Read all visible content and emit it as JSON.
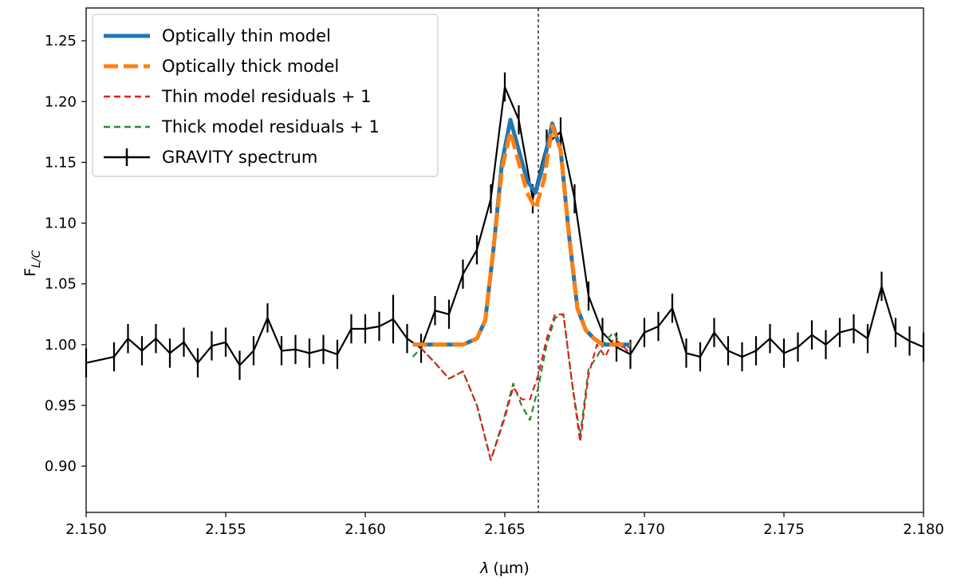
{
  "chart_data": {
    "type": "line",
    "xlabel_var": "λ",
    "xlabel_unit": "(μm)",
    "ylabel_main": "F",
    "ylabel_sub": "L/C",
    "xlim": [
      2.15,
      2.18
    ],
    "ylim": [
      0.862,
      1.277
    ],
    "xticks": [
      2.15,
      2.155,
      2.16,
      2.165,
      2.17,
      2.175,
      2.18
    ],
    "xtick_labels": [
      "2.150",
      "2.155",
      "2.160",
      "2.165",
      "2.170",
      "2.175",
      "2.180"
    ],
    "yticks": [
      0.9,
      0.95,
      1.0,
      1.05,
      1.1,
      1.15,
      1.2,
      1.25
    ],
    "ytick_labels": [
      "0.90",
      "0.95",
      "1.00",
      "1.05",
      "1.10",
      "1.15",
      "1.20",
      "1.25"
    ],
    "vline_x": 2.1662,
    "grid": false,
    "legend_position": "top-left",
    "series": [
      {
        "name": "GRAVITY spectrum",
        "kind": "errorbar",
        "color": "#000000",
        "x": [
          2.15,
          2.151,
          2.1515,
          2.152,
          2.1525,
          2.153,
          2.1535,
          2.154,
          2.1545,
          2.155,
          2.1555,
          2.156,
          2.1565,
          2.157,
          2.1575,
          2.158,
          2.1585,
          2.159,
          2.1595,
          2.16,
          2.1605,
          2.161,
          2.1615,
          2.162,
          2.1625,
          2.163,
          2.1635,
          2.164,
          2.1645,
          2.165,
          2.1655,
          2.166,
          2.1665,
          2.167,
          2.1675,
          2.168,
          2.1685,
          2.169,
          2.1695,
          2.17,
          2.1705,
          2.171,
          2.1715,
          2.172,
          2.1725,
          2.173,
          2.1735,
          2.174,
          2.1745,
          2.175,
          2.1755,
          2.176,
          2.1765,
          2.177,
          2.1775,
          2.178,
          2.1785,
          2.179,
          2.1795,
          2.18
        ],
        "y": [
          0.985,
          0.99,
          1.005,
          0.995,
          1.005,
          0.993,
          1.002,
          0.985,
          0.999,
          1.002,
          0.983,
          0.995,
          1.022,
          0.995,
          0.996,
          0.993,
          0.996,
          0.992,
          1.013,
          1.013,
          1.015,
          1.021,
          1.005,
          0.997,
          1.028,
          1.025,
          1.058,
          1.078,
          1.12,
          1.212,
          1.185,
          1.12,
          1.165,
          1.175,
          1.12,
          1.04,
          1.01,
          0.998,
          0.992,
          1.01,
          1.015,
          1.03,
          0.993,
          0.99,
          1.01,
          0.995,
          0.99,
          0.995,
          1.005,
          0.993,
          0.998,
          1.008,
          1.0,
          1.01,
          1.013,
          1.005,
          1.048,
          1.01,
          1.003,
          0.998
        ],
        "yerr": [
          0.012,
          0.012,
          0.012,
          0.012,
          0.012,
          0.012,
          0.012,
          0.012,
          0.012,
          0.012,
          0.012,
          0.012,
          0.012,
          0.012,
          0.012,
          0.012,
          0.012,
          0.012,
          0.012,
          0.012,
          0.012,
          0.02,
          0.012,
          0.012,
          0.012,
          0.012,
          0.012,
          0.012,
          0.012,
          0.012,
          0.012,
          0.012,
          0.012,
          0.012,
          0.012,
          0.012,
          0.012,
          0.012,
          0.012,
          0.012,
          0.012,
          0.012,
          0.012,
          0.012,
          0.012,
          0.012,
          0.012,
          0.012,
          0.012,
          0.012,
          0.012,
          0.012,
          0.012,
          0.012,
          0.012,
          0.012,
          0.012,
          0.012,
          0.012,
          0.012
        ]
      },
      {
        "name": "Optically thin model",
        "kind": "line",
        "color": "#1f77b4",
        "x": [
          2.1617,
          2.162,
          2.1625,
          2.163,
          2.1635,
          2.164,
          2.1643,
          2.1646,
          2.1649,
          2.1652,
          2.1655,
          2.1658,
          2.1661,
          2.1664,
          2.1667,
          2.167,
          2.1673,
          2.1676,
          2.1679,
          2.1682,
          2.1685,
          2.169,
          2.1695
        ],
        "y": [
          1.0,
          1.0,
          1.0,
          1.0,
          1.0,
          1.005,
          1.02,
          1.08,
          1.15,
          1.185,
          1.16,
          1.135,
          1.125,
          1.15,
          1.182,
          1.16,
          1.09,
          1.03,
          1.012,
          1.005,
          1.0,
          1.0,
          1.0
        ]
      },
      {
        "name": "Optically thick model",
        "kind": "line",
        "color": "#ff7f0e",
        "x": [
          2.1617,
          2.162,
          2.1625,
          2.163,
          2.1635,
          2.164,
          2.1643,
          2.1646,
          2.1649,
          2.1652,
          2.1655,
          2.1658,
          2.1661,
          2.1664,
          2.1667,
          2.167,
          2.1673,
          2.1676,
          2.1679,
          2.1682,
          2.1685,
          2.169,
          2.1695
        ],
        "y": [
          1.0,
          1.0,
          1.0,
          1.0,
          1.0,
          1.005,
          1.02,
          1.08,
          1.145,
          1.175,
          1.15,
          1.125,
          1.112,
          1.135,
          1.18,
          1.16,
          1.09,
          1.03,
          1.012,
          1.005,
          1.0,
          1.0,
          1.0
        ]
      },
      {
        "name": "Thin model residuals + 1",
        "kind": "dashed",
        "color": "#e02020",
        "x": [
          2.162,
          2.1625,
          2.163,
          2.1635,
          2.164,
          2.1645,
          2.165,
          2.1653,
          2.1656,
          2.1659,
          2.1662,
          2.1665,
          2.1668,
          2.1671,
          2.1674,
          2.1677,
          2.168,
          2.1683,
          2.1686,
          2.1689,
          2.1692,
          2.1695
        ],
        "y": [
          0.997,
          0.985,
          0.972,
          0.978,
          0.95,
          0.905,
          0.94,
          0.965,
          0.955,
          0.955,
          0.975,
          1.005,
          1.025,
          1.025,
          0.97,
          0.92,
          0.975,
          1.0,
          0.99,
          1.005,
          1.0,
          0.992
        ]
      },
      {
        "name": "Thick model residuals + 1",
        "kind": "dashed",
        "color": "#2a8a2a",
        "x": [
          2.1617,
          2.162,
          2.1625,
          2.163,
          2.1635,
          2.164,
          2.1645,
          2.165,
          2.1653,
          2.1656,
          2.1659,
          2.1662,
          2.1665,
          2.1668,
          2.1671,
          2.1674,
          2.1677,
          2.168,
          2.1683,
          2.1686,
          2.1689,
          2.1692,
          2.1695
        ],
        "y": [
          0.99,
          0.997,
          0.985,
          0.972,
          0.978,
          0.95,
          0.905,
          0.942,
          0.968,
          0.95,
          0.938,
          0.965,
          1.0,
          1.022,
          1.025,
          0.97,
          0.925,
          0.98,
          0.99,
          1.003,
          1.01,
          0.998,
          0.998
        ]
      }
    ]
  }
}
